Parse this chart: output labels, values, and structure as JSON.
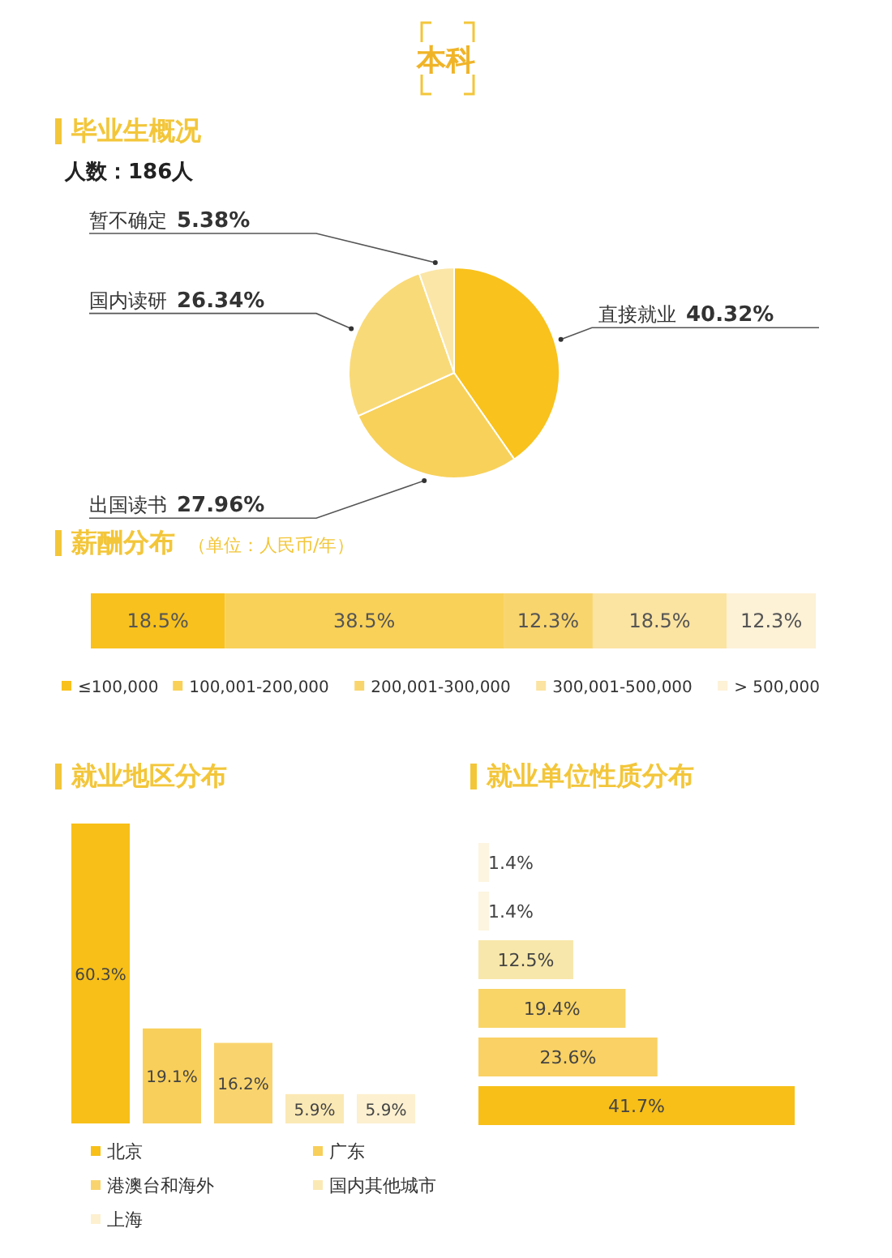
{
  "chart_data": [
    {
      "type": "pie",
      "title": "毕业生概况",
      "subtitle": "人数：186人",
      "annotations": [
        "本科"
      ],
      "categories": [
        "直接就业",
        "出国读书",
        "国内读研",
        "暂不确定"
      ],
      "values": [
        40.32,
        27.96,
        26.34,
        5.38
      ],
      "colors": [
        "#f9c21c",
        "#f8d15a",
        "#f9da78",
        "#fbe6a8"
      ],
      "value_labels": [
        "40.32%",
        "27.96%",
        "26.34%",
        "5.38%"
      ]
    },
    {
      "type": "bar",
      "title": "薪酬分布",
      "subtitle": "（单位：人民币/年）",
      "orientation": "horizontal",
      "stacked": true,
      "categories": [
        null
      ],
      "series": [
        {
          "name": "≤100,000",
          "color": "#f8c11d",
          "values": [
            18.5
          ],
          "value_labels": [
            "18.5%"
          ]
        },
        {
          "name": "100,001-200,000",
          "color": "#f9d158",
          "values": [
            38.5
          ],
          "value_labels": [
            "38.5%"
          ]
        },
        {
          "name": "200,001-300,000",
          "color": "#f9d56d",
          "values": [
            12.3
          ],
          "value_labels": [
            "12.3%"
          ]
        },
        {
          "name": "300,001-500,000",
          "color": "#fbe3a1",
          "values": [
            18.5
          ],
          "value_labels": [
            "18.5%"
          ]
        },
        {
          "name": "> 500,000",
          "color": "#fdf1d6",
          "values": [
            12.3
          ],
          "value_labels": [
            "12.3%"
          ]
        }
      ],
      "legend": "bottom"
    },
    {
      "type": "bar",
      "title": "就业地区分布",
      "categories": [
        null
      ],
      "series": [
        {
          "name": "北京",
          "color": "#f7bf18",
          "values": [
            60.3
          ],
          "value_labels": [
            "60.3%"
          ]
        },
        {
          "name": "广东",
          "color": "#f8cf5a",
          "values": [
            19.1
          ],
          "value_labels": [
            "19.1%"
          ]
        },
        {
          "name": "港澳台和海外",
          "color": "#f9d46e",
          "values": [
            16.2
          ],
          "value_labels": [
            "16.2%"
          ]
        },
        {
          "name": "国内其他城市",
          "color": "#fbe9b5",
          "values": [
            5.9
          ],
          "value_labels": [
            "5.9%"
          ]
        },
        {
          "name": "上海",
          "color": "#fcf0d0",
          "values": [
            5.9
          ],
          "value_labels": [
            "5.9%"
          ]
        }
      ],
      "legend": "bottom"
    },
    {
      "type": "bar",
      "title": "就业单位性质分布",
      "orientation": "horizontal",
      "categories": [
        null,
        null,
        null,
        null,
        null,
        null
      ],
      "values": [
        1.4,
        1.4,
        12.5,
        19.4,
        23.6,
        41.7
      ],
      "colors": [
        "#fdf5e0",
        "#fdf5e0",
        "#f7e7aa",
        "#f9d567",
        "#f9d164",
        "#f7bf18"
      ],
      "value_labels": [
        "1.4%",
        "1.4%",
        "12.5%",
        "19.4%",
        "23.6%",
        "41.7%"
      ]
    }
  ]
}
